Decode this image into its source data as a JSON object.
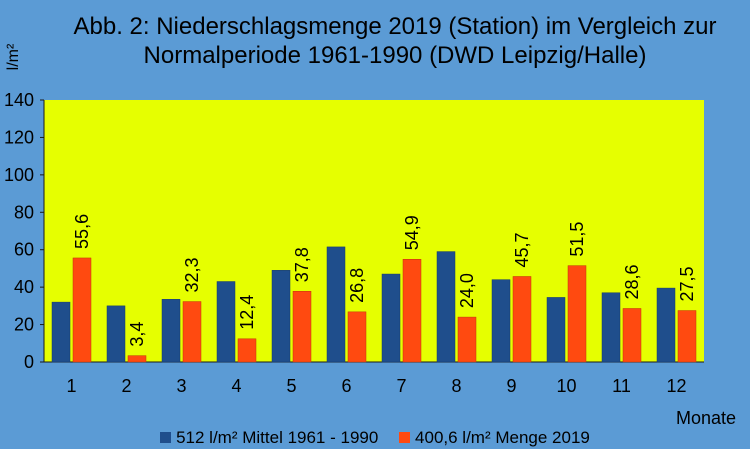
{
  "colors": {
    "background": "#5b9bd5",
    "plot_area": "#e6ff00",
    "series_1": "#1f4e8c",
    "series_2": "#ff4a10"
  },
  "chart_data": {
    "type": "bar",
    "title": [
      "Abb. 2: Niederschlagsmenge 2019 (Station) im Vergleich zur",
      "Normalperiode 1961-1990 (DWD Leipzig/Halle)"
    ],
    "xlabel": "Monate",
    "ylabel": "l/m²",
    "ylim": [
      0,
      140
    ],
    "yticks": [
      0,
      20,
      40,
      60,
      80,
      100,
      120,
      140
    ],
    "grid": false,
    "legend_position": "bottom",
    "categories": [
      "1",
      "2",
      "3",
      "4",
      "5",
      "6",
      "7",
      "8",
      "9",
      "10",
      "11",
      "12"
    ],
    "series": [
      {
        "name": "512 l/m² Mittel 1961 - 1990",
        "values": [
          32,
          30,
          33.5,
          43,
          49,
          61.5,
          47,
          59,
          44,
          34.5,
          37,
          39.5
        ]
      },
      {
        "name": "400,6 l/m² Menge 2019",
        "values": [
          55.6,
          3.4,
          32.3,
          12.4,
          37.8,
          26.8,
          54.9,
          24.0,
          45.7,
          51.5,
          28.6,
          27.5
        ],
        "data_labels": [
          "55,6",
          "3,4",
          "32,3",
          "12,4",
          "37,8",
          "26,8",
          "54,9",
          "24,0",
          "45,7",
          "51,5",
          "28,6",
          "27,5"
        ]
      }
    ]
  }
}
